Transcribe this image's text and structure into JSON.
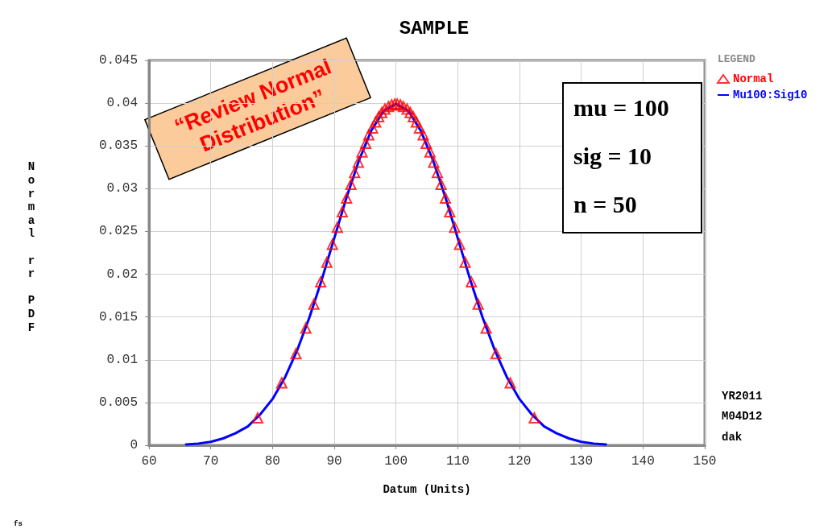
{
  "chart_data": {
    "type": "scatter",
    "title": "SAMPLE",
    "xlabel": "Datum (Units)",
    "ylabel": "Normal rr PDF",
    "legend_title": "LEGEND",
    "legend": "top right",
    "grid": true,
    "xlim": [
      60,
      150
    ],
    "xticks": [
      60,
      70,
      80,
      90,
      100,
      110,
      120,
      130,
      140,
      150
    ],
    "ylim": [
      0,
      0.045
    ],
    "yticks": [
      0,
      0.005,
      0.01,
      0.015,
      0.02,
      0.025,
      0.03,
      0.035,
      0.04,
      0.045
    ],
    "annotations": [
      "“Review Normal Distribution”",
      "mu = 100",
      "sig = 10",
      "n = 50",
      "YR2011",
      "M04D12",
      "dak",
      "fs"
    ],
    "series": [
      {
        "name": "Normal",
        "marker": "triangle",
        "color": "#ff0000",
        "x": [
          77.6,
          81.5,
          83.8,
          85.4,
          86.7,
          87.8,
          88.8,
          89.7,
          90.5,
          91.3,
          92.0,
          92.7,
          93.3,
          93.9,
          94.5,
          95.1,
          95.6,
          96.2,
          96.7,
          97.2,
          97.7,
          98.2,
          98.8,
          99.3,
          99.8,
          100.2,
          100.7,
          101.2,
          101.8,
          102.3,
          102.8,
          103.3,
          103.8,
          104.4,
          104.9,
          105.5,
          106.1,
          106.7,
          107.3,
          108.0,
          108.7,
          109.5,
          110.3,
          111.2,
          112.2,
          113.3,
          114.6,
          116.2,
          118.5,
          122.4
        ],
        "values": [
          0.0032,
          0.0073,
          0.0107,
          0.0137,
          0.0165,
          0.0191,
          0.0214,
          0.0235,
          0.0255,
          0.0273,
          0.0289,
          0.0305,
          0.0319,
          0.0331,
          0.0343,
          0.0353,
          0.0363,
          0.0371,
          0.0378,
          0.0384,
          0.0389,
          0.0393,
          0.0396,
          0.0398,
          0.0399,
          0.0399,
          0.0398,
          0.0396,
          0.0393,
          0.0389,
          0.0384,
          0.0378,
          0.0371,
          0.0363,
          0.0353,
          0.0343,
          0.0331,
          0.0319,
          0.0305,
          0.0289,
          0.0273,
          0.0255,
          0.0235,
          0.0214,
          0.0191,
          0.0165,
          0.0137,
          0.0107,
          0.0073,
          0.0032
        ]
      },
      {
        "name": "Mu100:Sig10",
        "type": "line",
        "marker": "none",
        "line_style": "solid",
        "color": "#0000ff",
        "x": [
          66,
          68,
          70,
          72,
          74,
          76,
          78,
          80,
          82,
          84,
          86,
          88,
          90,
          92,
          94,
          96,
          98,
          100,
          102,
          104,
          106,
          108,
          110,
          112,
          114,
          116,
          118,
          120,
          122,
          124,
          126,
          128,
          130,
          132,
          134
        ],
        "values": [
          0.0001,
          0.0002,
          0.0004,
          0.0008,
          0.0014,
          0.0022,
          0.0036,
          0.0054,
          0.0079,
          0.0111,
          0.015,
          0.0194,
          0.0242,
          0.029,
          0.0333,
          0.0368,
          0.0391,
          0.0399,
          0.0391,
          0.0368,
          0.0333,
          0.029,
          0.0242,
          0.0194,
          0.015,
          0.0111,
          0.0079,
          0.0054,
          0.0036,
          0.0022,
          0.0014,
          0.0008,
          0.0004,
          0.0002,
          0.0001
        ]
      }
    ]
  }
}
